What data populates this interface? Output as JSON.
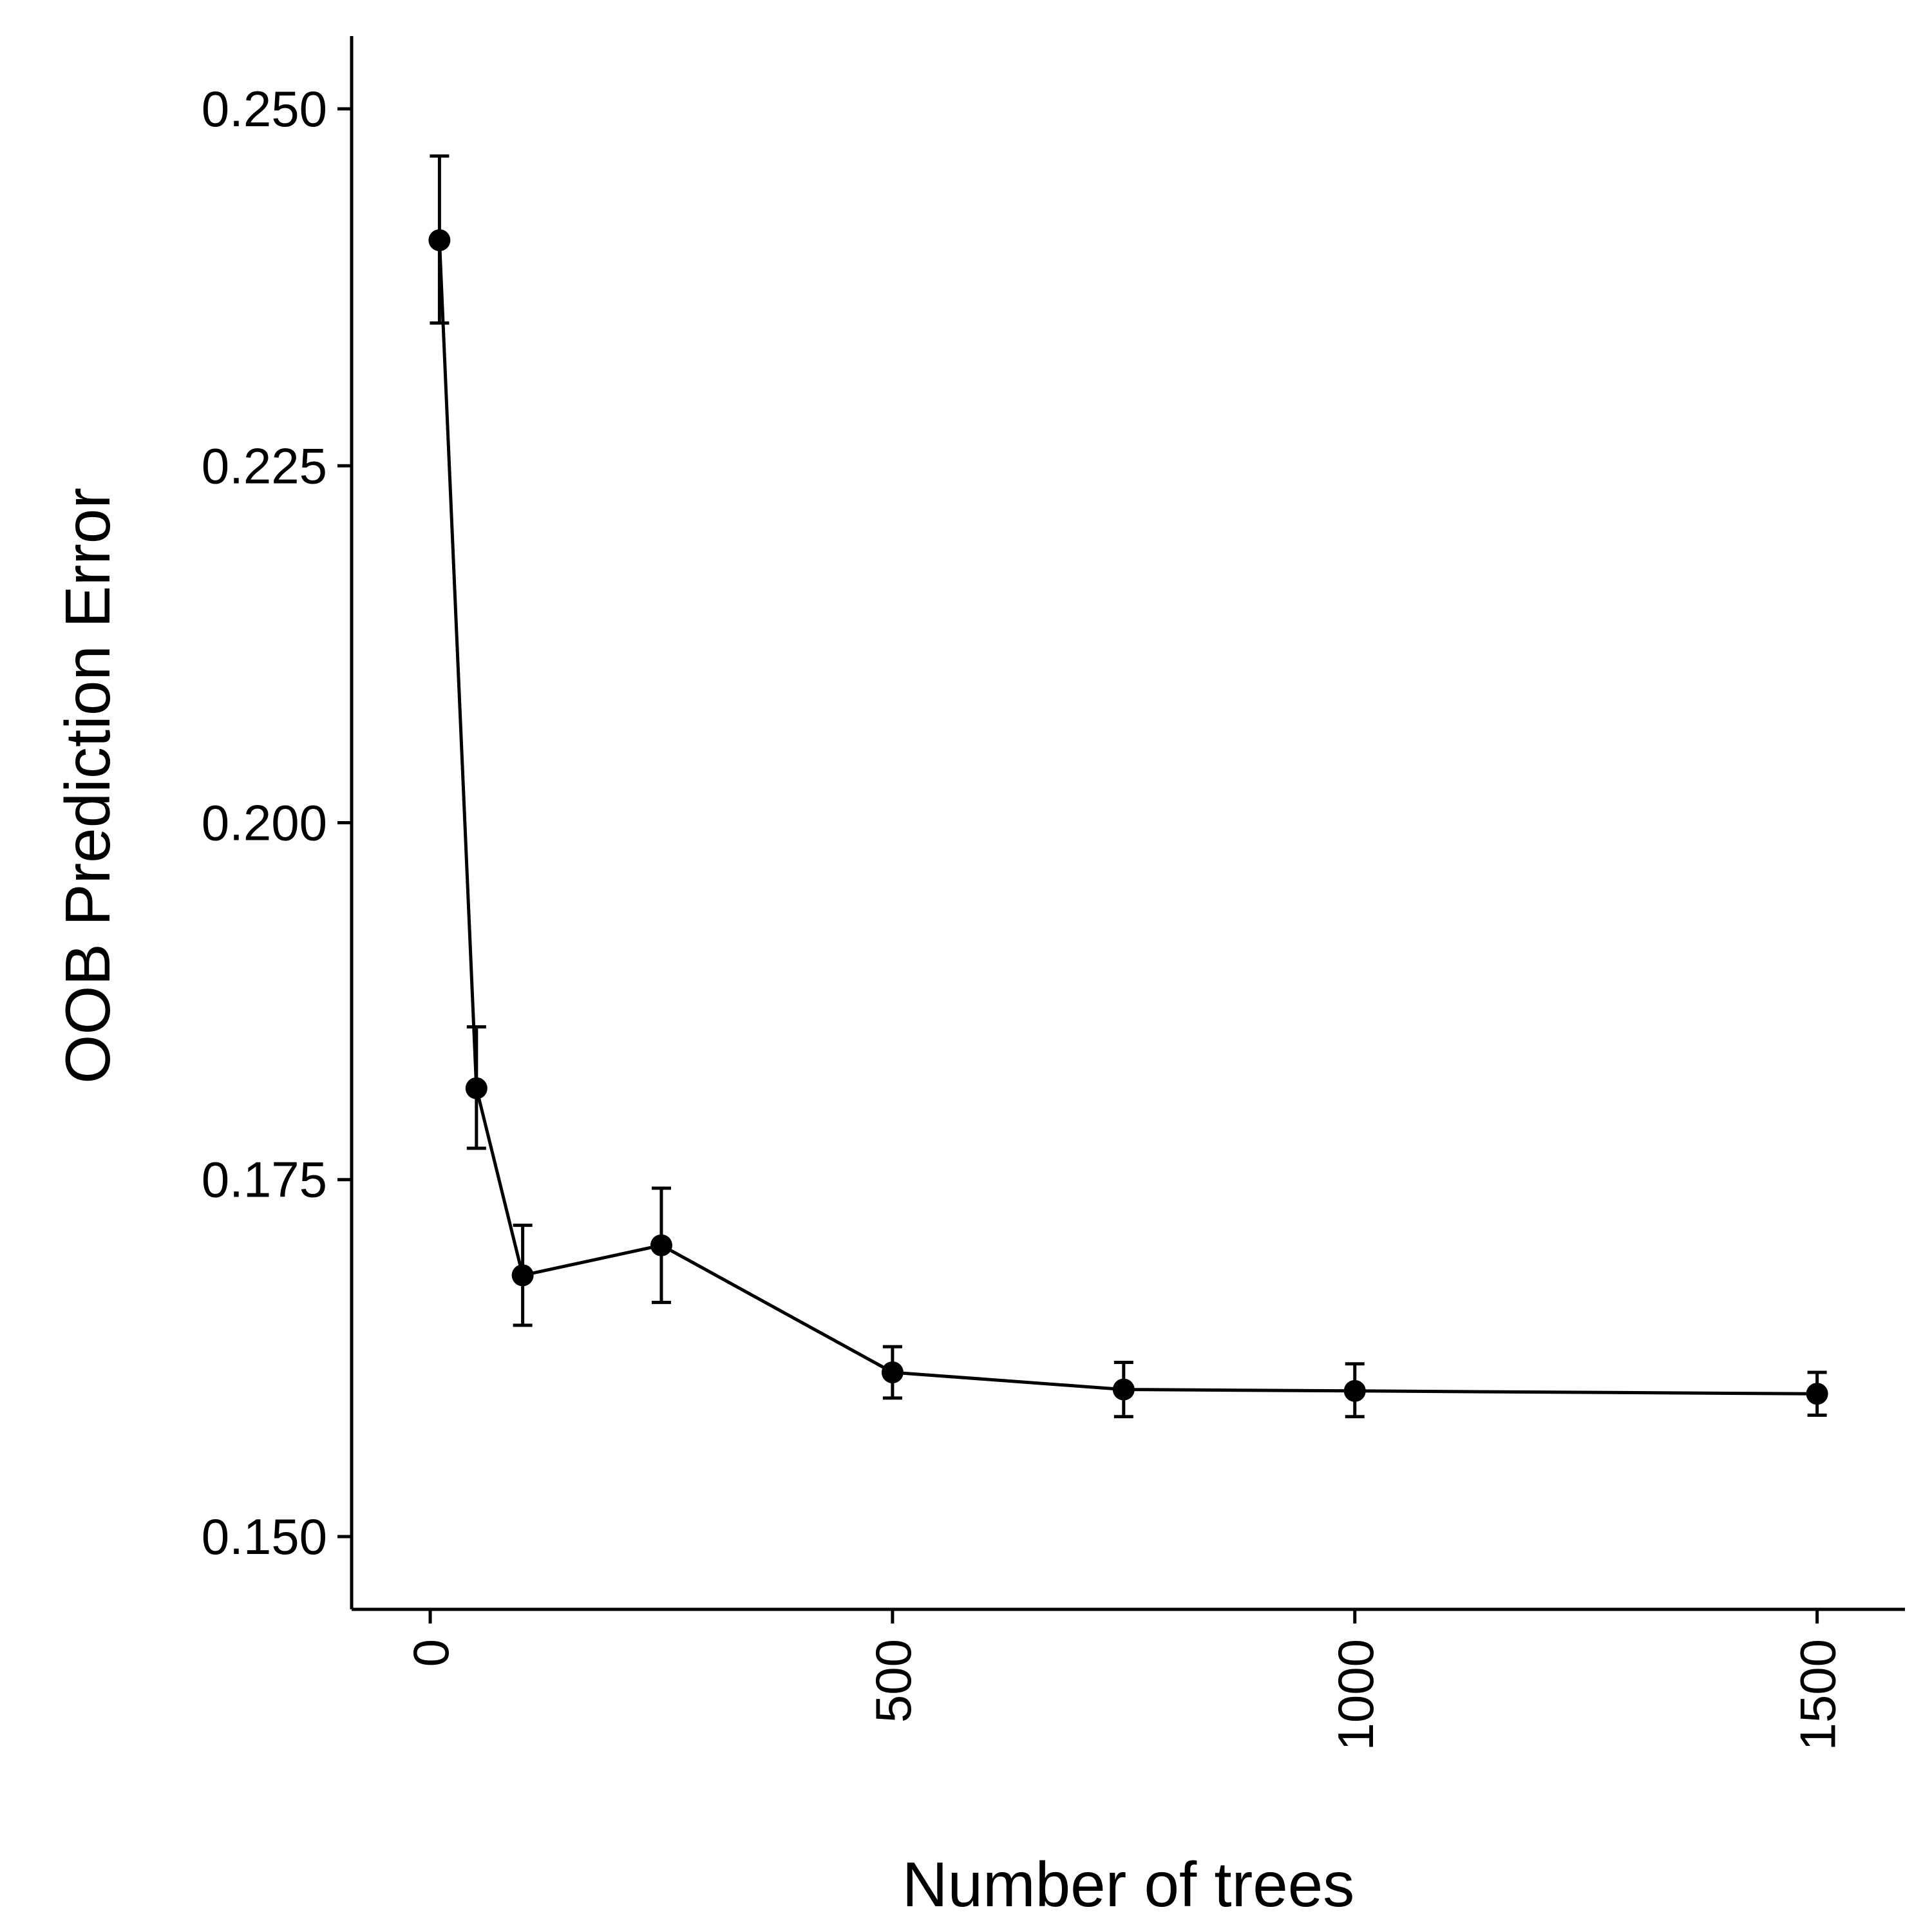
{
  "chart_data": {
    "type": "line",
    "title": "",
    "xlabel": "Number of trees",
    "ylabel": "OOB Prediction Error",
    "xlim": [
      -85,
      1595
    ],
    "ylim": [
      0.1449,
      0.2551
    ],
    "x_ticks": [
      0,
      500,
      1000,
      1500
    ],
    "x_tick_labels": [
      "0",
      "500",
      "1000",
      "1500"
    ],
    "y_ticks": [
      0.15,
      0.175,
      0.2,
      0.225,
      0.25
    ],
    "y_tick_labels": [
      "0.150",
      "0.175",
      "0.200",
      "0.225",
      "0.250"
    ],
    "grid": false,
    "legend": "none",
    "series": [
      {
        "points": [
          {
            "x": 10,
            "y": 0.2408,
            "lower": 0.235,
            "upper": 0.2467
          },
          {
            "x": 50,
            "y": 0.1814,
            "lower": 0.1772,
            "upper": 0.1857
          },
          {
            "x": 100,
            "y": 0.1683,
            "lower": 0.1648,
            "upper": 0.1718
          },
          {
            "x": 250,
            "y": 0.1704,
            "lower": 0.1664,
            "upper": 0.1744
          },
          {
            "x": 500,
            "y": 0.1615,
            "lower": 0.1597,
            "upper": 0.1633
          },
          {
            "x": 750,
            "y": 0.1603,
            "lower": 0.1584,
            "upper": 0.1622
          },
          {
            "x": 1000,
            "y": 0.1602,
            "lower": 0.1584,
            "upper": 0.1621
          },
          {
            "x": 1500,
            "y": 0.16,
            "lower": 0.1585,
            "upper": 0.1615
          }
        ]
      }
    ],
    "colors": {
      "series": "#000000",
      "axis": "#000000",
      "background": "#ffffff"
    }
  }
}
